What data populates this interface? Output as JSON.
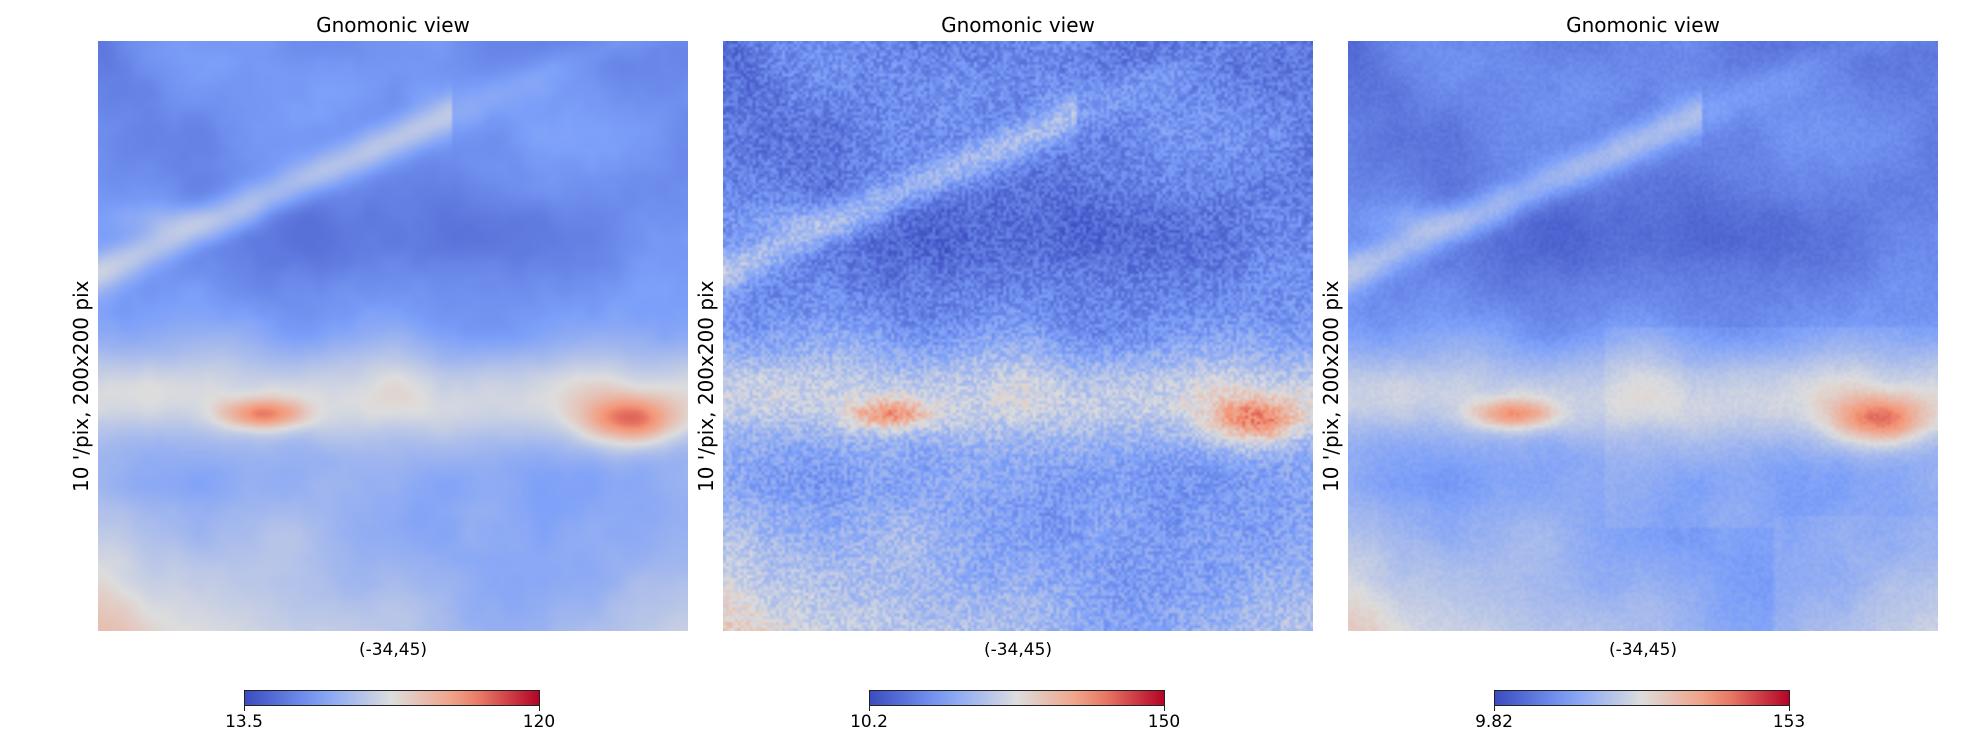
{
  "chart_data": [
    {
      "type": "heatmap",
      "title": "Gnomonic view",
      "ylabel": "10 '/pix,   200x200 pix",
      "xlabel": "(-34,45)",
      "colormap": "coolwarm",
      "colorbar": {
        "min": "13.5",
        "max": "120"
      },
      "style": "smooth"
    },
    {
      "type": "heatmap",
      "title": "Gnomonic view",
      "ylabel": "10 '/pix,   200x200 pix",
      "xlabel": "(-34,45)",
      "colormap": "coolwarm",
      "colorbar": {
        "min": "10.2",
        "max": "150"
      },
      "style": "noisy"
    },
    {
      "type": "heatmap",
      "title": "Gnomonic view",
      "ylabel": "10 '/pix,   200x200 pix",
      "xlabel": "(-34,45)",
      "colormap": "coolwarm",
      "colorbar": {
        "min": "9.82",
        "max": "153"
      },
      "style": "patched"
    }
  ],
  "colors": {
    "cmap_low": "#3b4cc0",
    "cmap_mid": "#dddddd",
    "cmap_high": "#b40426"
  }
}
